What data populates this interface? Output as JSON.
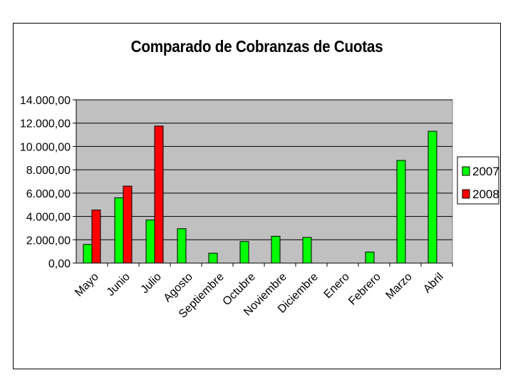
{
  "chart_data": {
    "type": "bar",
    "title": "Comparado de Cobranzas de Cuotas",
    "xlabel": "",
    "ylabel": "",
    "categories": [
      "Mayo",
      "Junio",
      "Julio",
      "Agosto",
      "Septiembre",
      "Octubre",
      "Noviembre",
      "Diciembre",
      "Enero",
      "Febrero",
      "Marzo",
      "Abril"
    ],
    "series": [
      {
        "name": "2007",
        "color": "#00ff00",
        "values": [
          1600,
          5600,
          3700,
          2950,
          850,
          1850,
          2300,
          2200,
          0,
          950,
          8800,
          11300
        ]
      },
      {
        "name": "2008",
        "color": "#ff0000",
        "values": [
          4550,
          6600,
          11750,
          null,
          null,
          null,
          null,
          null,
          null,
          null,
          null,
          null
        ]
      }
    ],
    "ylim": [
      0,
      14000
    ],
    "yticks": [
      "0,00",
      "2.000,00",
      "4.000,00",
      "6.000,00",
      "8.000,00",
      "10.000,00",
      "12.000,00",
      "14.000,00"
    ],
    "plot_background": "#c0c0c0",
    "grid": true,
    "legend": "right"
  }
}
